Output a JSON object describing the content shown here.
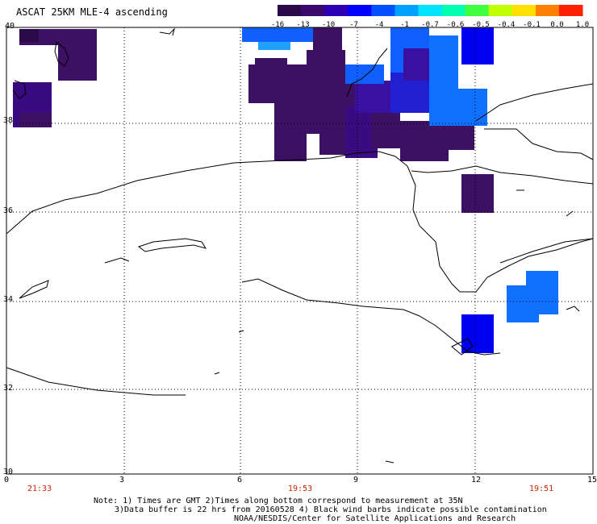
{
  "title": "ASCAT 25KM MLE-4 ascending",
  "colorbar": {
    "labels": [
      "-16",
      "-13",
      "-10",
      "-7",
      "-4",
      "-1",
      "-0.7",
      "-0.6",
      "-0.5",
      "-0.4",
      "-0.1",
      "0.0",
      "1.0"
    ],
    "colors": [
      "#2a0a4a",
      "#3a0a6e",
      "#2e00b4",
      "#0000ff",
      "#0050ff",
      "#00a0ff",
      "#00e4ff",
      "#00ffb0",
      "#40ff40",
      "#c0ff00",
      "#ffe000",
      "#ff8000",
      "#ff2000"
    ]
  },
  "lat_labels": [
    "40",
    "38",
    "36",
    "34",
    "32",
    "30"
  ],
  "lon_labels": [
    "0",
    "3",
    "6",
    "9",
    "12",
    "15"
  ],
  "times": [
    "21:33",
    "19:53",
    "19:51"
  ],
  "notes": {
    "line1": "Note: 1) Times are GMT 2)Times along bottom correspond to measurement at 35N",
    "line2": "3)Data buffer is 22 hrs from 20160528 4) Black wind barbs indicate possible contamination",
    "line3": "NOAA/NESDIS/Center for Satellite Applications and Research"
  }
}
